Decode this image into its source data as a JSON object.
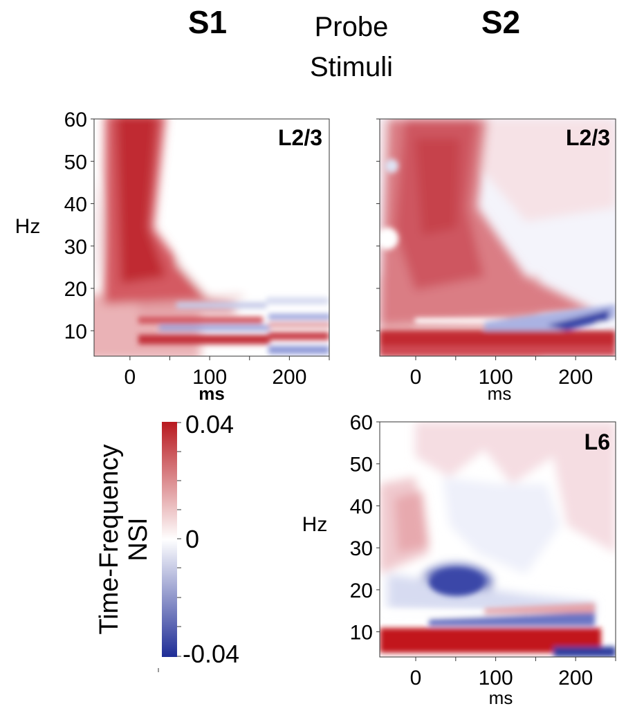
{
  "header": {
    "s1": "S1",
    "probe_line1": "Probe",
    "probe_line2": "Stimuli",
    "s2": "S2"
  },
  "colors": {
    "max": "#b8191f",
    "zero": "#ffffff",
    "min": "#1e2c96"
  },
  "chart_data": [
    {
      "type": "heatmap",
      "id": "s1_l23",
      "panel_label": "L2/3",
      "xlabel": "ms",
      "ylabel": "Hz",
      "xlim": [
        -45,
        250
      ],
      "ylim": [
        4,
        60
      ],
      "xticks": [
        0,
        100,
        200
      ],
      "yticks": [
        10,
        20,
        30,
        40,
        50,
        60
      ],
      "show_ytick_labels": true,
      "show_xlabel_bold": true,
      "clim": [
        -0.04,
        0.04
      ]
    },
    {
      "type": "heatmap",
      "id": "s2_l23",
      "panel_label": "L2/3",
      "xlabel": "ms",
      "ylabel": "",
      "xlim": [
        -45,
        250
      ],
      "ylim": [
        4,
        60
      ],
      "xticks": [
        0,
        100,
        200
      ],
      "yticks": [
        10,
        20,
        30,
        40,
        50,
        60
      ],
      "show_ytick_labels": false,
      "show_xlabel_bold": false,
      "clim": [
        -0.04,
        0.04
      ]
    },
    {
      "type": "heatmap",
      "id": "s2_l6",
      "panel_label": "L6",
      "xlabel": "ms",
      "ylabel": "Hz",
      "xlim": [
        -45,
        250
      ],
      "ylim": [
        4,
        60
      ],
      "xticks": [
        0,
        100,
        200
      ],
      "yticks": [
        10,
        20,
        30,
        40,
        50,
        60
      ],
      "show_ytick_labels": true,
      "show_xlabel_bold": false,
      "clim": [
        -0.04,
        0.04
      ]
    }
  ],
  "colorbar": {
    "title_line1": "Time-Frequency",
    "title_line2": "NSI",
    "max_label": "0.04",
    "zero_label": "0",
    "min_label": "-0.04"
  }
}
